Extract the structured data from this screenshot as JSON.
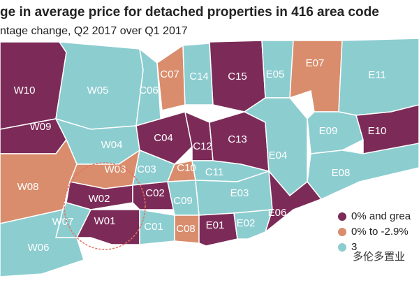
{
  "header": {
    "title": "ge in average price for detached properties in 416 area code",
    "subtitle": "ntage change, Q2 2017 over Q1 2017"
  },
  "regions": [
    {
      "label": "W10",
      "color": "#7c2b58"
    },
    {
      "label": "W05",
      "color": "#8ccdd0"
    },
    {
      "label": "C06",
      "color": "#8ccdd0"
    },
    {
      "label": "C07",
      "color": "#d98d6c"
    },
    {
      "label": "C14",
      "color": "#8ccdd0"
    },
    {
      "label": "C15",
      "color": "#7c2b58"
    },
    {
      "label": "E05",
      "color": "#8ccdd0"
    },
    {
      "label": "E07",
      "color": "#d98d6c"
    },
    {
      "label": "E11",
      "color": "#8ccdd0"
    },
    {
      "label": "W09",
      "color": "#7c2b58"
    },
    {
      "label": "W04",
      "color": "#8ccdd0"
    },
    {
      "label": "C04",
      "color": "#7c2b58"
    },
    {
      "label": "C12",
      "color": "#7c2b58"
    },
    {
      "label": "C13",
      "color": "#7c2b58"
    },
    {
      "label": "E04",
      "color": "#8ccdd0"
    },
    {
      "label": "E09",
      "color": "#8ccdd0"
    },
    {
      "label": "E10",
      "color": "#7c2b58"
    },
    {
      "label": "E08",
      "color": "#8ccdd0"
    },
    {
      "label": "W03",
      "color": "#d98d6c"
    },
    {
      "label": "C03",
      "color": "#8ccdd0"
    },
    {
      "label": "C10",
      "color": "#d98d6c"
    },
    {
      "label": "C11",
      "color": "#8ccdd0"
    },
    {
      "label": "W08",
      "color": "#d98d6c"
    },
    {
      "label": "W02",
      "color": "#7c2b58"
    },
    {
      "label": "C02",
      "color": "#7c2b58"
    },
    {
      "label": "C09",
      "color": "#8ccdd0"
    },
    {
      "label": "E03",
      "color": "#8ccdd0"
    },
    {
      "label": "W07",
      "color": "#8ccdd0"
    },
    {
      "label": "W01",
      "color": "#7c2b58"
    },
    {
      "label": "C01",
      "color": "#8ccdd0"
    },
    {
      "label": "C08",
      "color": "#d98d6c"
    },
    {
      "label": "E01",
      "color": "#7c2b58"
    },
    {
      "label": "E02",
      "color": "#8ccdd0"
    },
    {
      "label": "E06",
      "color": "#7c2b58"
    },
    {
      "label": "W06",
      "color": "#8ccdd0"
    }
  ],
  "legend": [
    {
      "name": "0% and grea",
      "color": "#7c2b58"
    },
    {
      "name": "0% to -2.9%",
      "color": "#d98d6c"
    },
    {
      "name": "3",
      "color": "#8ccdd0"
    }
  ],
  "watermark": "多伦多置业"
}
